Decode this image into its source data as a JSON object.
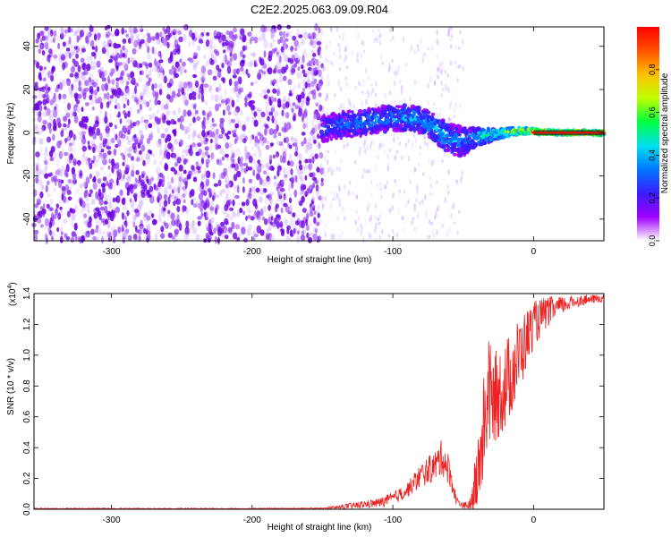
{
  "title": "C2E2.2025.063.09.09.R04",
  "chart_data": [
    {
      "type": "heatmap",
      "title": "",
      "xlabel": "Height of straight line (km)",
      "ylabel": "Frequency (Hz)",
      "xlim": [
        -355,
        50
      ],
      "ylim": [
        -50,
        49
      ],
      "xticks": [
        -300,
        -200,
        -100,
        0
      ],
      "yticks": [
        -40,
        -20,
        0,
        20,
        40
      ],
      "colorbar": {
        "label": "Normalized spectral amplitude",
        "range": [
          0,
          1
        ],
        "ticks": [
          "0.0",
          "0.2",
          "0.4",
          "0.6",
          "0.8"
        ],
        "tick_values": [
          0.0,
          0.2,
          0.4,
          0.6,
          0.8
        ],
        "colors": [
          "#ffffff",
          "#a000ff",
          "#3b1cff",
          "#0077ff",
          "#00e0f0",
          "#00ff40",
          "#c0ff00",
          "#ffc000",
          "#ff5000",
          "#ff0000"
        ]
      },
      "description": "noise speckle for heights < -150 km; signal band centred near 0 Hz from -150 to 50 km",
      "ridge": {
        "x": [
          -150,
          -130,
          -110,
          -95,
          -80,
          -70,
          -60,
          -50,
          -40,
          -30,
          -20,
          -10,
          0,
          20,
          50
        ],
        "y": [
          2,
          4,
          6,
          7,
          6,
          2,
          -3,
          -4,
          -2,
          -1,
          0,
          1,
          0.5,
          0,
          0
        ],
        "halfwidth_hz": [
          6,
          6,
          6,
          6,
          6,
          6,
          7,
          7,
          4,
          3,
          2,
          1.5,
          1.2,
          1,
          1
        ],
        "amplitude": [
          0.3,
          0.35,
          0.38,
          0.4,
          0.42,
          0.45,
          0.4,
          0.35,
          0.45,
          0.55,
          0.7,
          0.8,
          0.9,
          0.95,
          0.95
        ]
      }
    },
    {
      "type": "line",
      "title": "",
      "xlabel": "Height of straight line (km)",
      "ylabel": "SNR (10 * v/v)",
      "yscale_label": "(x10",
      "yscale_exp": "4",
      "xlim": [
        -355,
        50
      ],
      "ylim": [
        0,
        1.4
      ],
      "xticks": [
        -300,
        -200,
        -100,
        0
      ],
      "yticks": [
        "0.0",
        "0.2",
        "0.4",
        "0.6",
        "0.8",
        "1.0",
        "1.2",
        "1.4"
      ],
      "ytick_values": [
        0,
        0.2,
        0.4,
        0.6,
        0.8,
        1.0,
        1.2,
        1.4
      ],
      "color": "#ee2222",
      "x": [
        -355,
        -300,
        -250,
        -200,
        -150,
        -130,
        -110,
        -100,
        -90,
        -80,
        -70,
        -65,
        -60,
        -55,
        -50,
        -45,
        -40,
        -35,
        -32,
        -30,
        -28,
        -25,
        -20,
        -15,
        -10,
        -5,
        0,
        10,
        20,
        30,
        40,
        50
      ],
      "y": [
        0.0,
        0.0,
        0.0,
        0.0,
        0.0,
        0.02,
        0.04,
        0.07,
        0.12,
        0.22,
        0.28,
        0.34,
        0.25,
        0.06,
        0.02,
        0.03,
        0.2,
        0.55,
        0.8,
        0.7,
        0.72,
        0.75,
        0.8,
        0.9,
        1.0,
        1.1,
        1.2,
        1.28,
        1.32,
        1.35,
        1.36,
        1.37
      ],
      "spread": [
        0.0,
        0.0,
        0.0,
        0.0,
        0.01,
        0.02,
        0.03,
        0.04,
        0.05,
        0.08,
        0.1,
        0.12,
        0.1,
        0.03,
        0.02,
        0.05,
        0.25,
        0.35,
        0.4,
        0.3,
        0.3,
        0.3,
        0.3,
        0.28,
        0.25,
        0.2,
        0.15,
        0.1,
        0.06,
        0.04,
        0.03,
        0.03
      ]
    }
  ]
}
